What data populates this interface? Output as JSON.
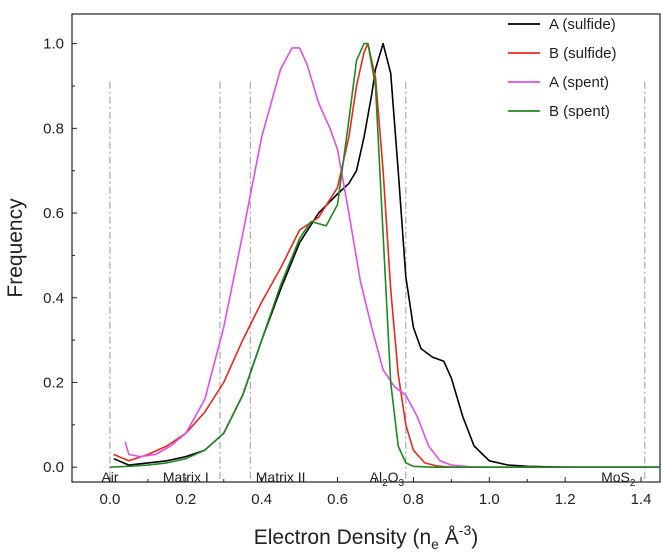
{
  "chart_data": {
    "type": "line",
    "title": "",
    "xlabel": "Electron Density (n",
    "xlabel_sub": "e",
    "xlabel_unit": " Å",
    "xlabel_sup": "-3",
    "xlabel_close": ")",
    "ylabel": "Frequency",
    "xlim": [
      -0.1,
      1.45
    ],
    "ylim": [
      -0.035,
      1.07
    ],
    "xticks": [
      0.0,
      0.2,
      0.4,
      0.6,
      0.8,
      1.0,
      1.2,
      1.4
    ],
    "xtick_labels": [
      "0.0",
      "0.2",
      "0.4",
      "0.6",
      "0.8",
      "1.0",
      "1.2",
      "1.4"
    ],
    "yticks": [
      0.0,
      0.2,
      0.4,
      0.6,
      0.8,
      1.0
    ],
    "ytick_labels": [
      "0.0",
      "0.2",
      "0.4",
      "0.6",
      "0.8",
      "1.0"
    ],
    "legend_position": "top-right",
    "region_boundaries": [
      0.0,
      0.29,
      0.37,
      0.78,
      1.41
    ],
    "region_labels": [
      {
        "text": "Air",
        "x": 0.0,
        "y": -0.025
      },
      {
        "text": "Matrix I",
        "x": 0.2,
        "y": -0.025
      },
      {
        "text": "Matrix II",
        "x": 0.45,
        "y": -0.025
      },
      {
        "text": "Al",
        "sub": "2",
        "tail": "O",
        "sub2": "3",
        "x": 0.73,
        "y": -0.025
      },
      {
        "text": "MoS",
        "sub": "2",
        "x": 1.34,
        "y": -0.025
      }
    ],
    "series": [
      {
        "name": "A (sulfide)",
        "color": "#000000",
        "x": [
          0.01,
          0.05,
          0.1,
          0.15,
          0.2,
          0.25,
          0.3,
          0.35,
          0.4,
          0.45,
          0.5,
          0.55,
          0.6,
          0.63,
          0.65,
          0.67,
          0.69,
          0.7,
          0.72,
          0.74,
          0.76,
          0.78,
          0.8,
          0.82,
          0.85,
          0.88,
          0.9,
          0.93,
          0.96,
          1.0,
          1.05,
          1.1,
          1.2,
          1.45
        ],
        "values": [
          0.02,
          0.005,
          0.01,
          0.015,
          0.025,
          0.04,
          0.08,
          0.17,
          0.3,
          0.42,
          0.53,
          0.6,
          0.645,
          0.67,
          0.7,
          0.78,
          0.88,
          0.94,
          1.0,
          0.93,
          0.7,
          0.45,
          0.33,
          0.28,
          0.26,
          0.25,
          0.21,
          0.12,
          0.05,
          0.015,
          0.005,
          0.002,
          0.0,
          0.0
        ]
      },
      {
        "name": "B (sulfide)",
        "color": "#e8291c",
        "x": [
          0.01,
          0.05,
          0.1,
          0.15,
          0.2,
          0.25,
          0.3,
          0.35,
          0.4,
          0.45,
          0.5,
          0.55,
          0.6,
          0.63,
          0.65,
          0.67,
          0.68,
          0.7,
          0.72,
          0.74,
          0.76,
          0.78,
          0.8,
          0.83,
          0.86,
          0.9,
          1.0,
          1.45
        ],
        "values": [
          0.03,
          0.015,
          0.03,
          0.05,
          0.08,
          0.13,
          0.2,
          0.3,
          0.39,
          0.47,
          0.56,
          0.59,
          0.66,
          0.78,
          0.9,
          0.98,
          1.0,
          0.92,
          0.7,
          0.42,
          0.22,
          0.1,
          0.04,
          0.01,
          0.003,
          0.0,
          0.0,
          0.0
        ]
      },
      {
        "name": "A (spent)",
        "color": "#e14ef0",
        "x": [
          0.04,
          0.05,
          0.08,
          0.12,
          0.16,
          0.2,
          0.25,
          0.3,
          0.35,
          0.4,
          0.45,
          0.48,
          0.5,
          0.52,
          0.55,
          0.58,
          0.6,
          0.63,
          0.66,
          0.69,
          0.72,
          0.75,
          0.78,
          0.81,
          0.84,
          0.87,
          0.9,
          0.95,
          1.0,
          1.45
        ],
        "values": [
          0.06,
          0.03,
          0.025,
          0.03,
          0.05,
          0.08,
          0.16,
          0.33,
          0.55,
          0.78,
          0.94,
          0.99,
          0.99,
          0.95,
          0.86,
          0.8,
          0.75,
          0.6,
          0.44,
          0.33,
          0.23,
          0.19,
          0.17,
          0.12,
          0.05,
          0.015,
          0.005,
          0.001,
          0.0,
          0.0
        ]
      },
      {
        "name": "B (spent)",
        "color": "#1f8a1f",
        "x": [
          0.0,
          0.05,
          0.1,
          0.15,
          0.2,
          0.25,
          0.3,
          0.35,
          0.4,
          0.45,
          0.5,
          0.53,
          0.57,
          0.6,
          0.63,
          0.65,
          0.67,
          0.68,
          0.7,
          0.72,
          0.74,
          0.76,
          0.78,
          0.8,
          0.85,
          1.45
        ],
        "values": [
          0.0,
          0.002,
          0.005,
          0.01,
          0.02,
          0.04,
          0.08,
          0.17,
          0.3,
          0.43,
          0.54,
          0.58,
          0.57,
          0.62,
          0.82,
          0.96,
          1.0,
          1.0,
          0.9,
          0.55,
          0.2,
          0.05,
          0.01,
          0.002,
          0.0,
          0.0
        ]
      }
    ]
  }
}
